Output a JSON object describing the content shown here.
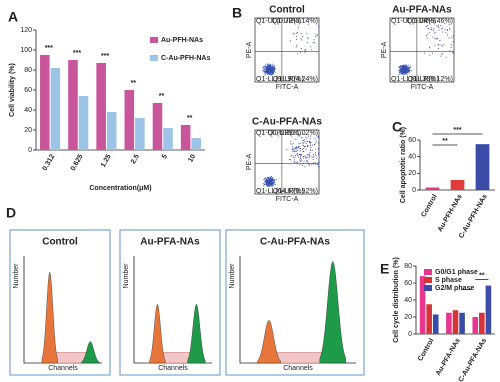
{
  "chart_data": [
    {
      "type": "bar",
      "panel": "A",
      "y_label": "Cell viability (%)",
      "x_label": "Concentration(μM)",
      "categories": [
        "0.312",
        "0.625",
        "1.25",
        "2.5",
        "5",
        "10"
      ],
      "series": [
        {
          "name": "Au-PFH-NAs",
          "color": "#c9559b",
          "values": [
            95,
            90,
            87,
            60,
            47,
            25
          ]
        },
        {
          "name": "C-Au-PFH-NAs",
          "color": "#9dc3e6",
          "values": [
            82,
            54,
            38,
            32,
            22,
            12
          ]
        }
      ],
      "annotations": [
        "***",
        "***",
        "***",
        "**",
        "**",
        "**"
      ],
      "ylim": [
        0,
        120
      ],
      "yticks": [
        0,
        20,
        40,
        60,
        80,
        100,
        120
      ]
    },
    {
      "type": "bar",
      "panel": "C",
      "y_label": "Cell apoptotic ratio (%)",
      "categories": [
        "Control",
        "Au-PFH-NAs",
        "C-Au-PFH-NAs"
      ],
      "values": [
        3,
        12,
        55
      ],
      "colors": [
        "#e8368f",
        "#e23b3b",
        "#3a4ca8"
      ],
      "annotations": [
        "**",
        "***"
      ],
      "ylim": [
        0,
        60
      ],
      "yticks": [
        0,
        20,
        40,
        60
      ]
    },
    {
      "type": "bar",
      "panel": "E",
      "y_label": "Cell cycle distribution (%)",
      "categories": [
        "Control",
        "Au-PFA-NAs",
        "C-Au-PFA-NAs"
      ],
      "series": [
        {
          "name": "G0/G1 phase",
          "color": "#e8368f",
          "values": [
            68,
            25,
            20
          ]
        },
        {
          "name": "S phase",
          "color": "#d6333a",
          "values": [
            35,
            28,
            25
          ]
        },
        {
          "name": "G2/M phase",
          "color": "#3a4ca8",
          "values": [
            23,
            25,
            57
          ]
        }
      ],
      "annotations": [
        "**"
      ],
      "ylim": [
        0,
        80
      ],
      "yticks": [
        0,
        20,
        40,
        60,
        80
      ]
    }
  ],
  "flow_panel": {
    "letter": "B",
    "x_axis": "FITC-A",
    "y_axis": "PE-A",
    "plots": [
      {
        "title": "Control",
        "UL": "Q1-UL(0.72%)",
        "UR": "Q1-UR(3.14%)",
        "LL": "Q1-LL(91.90%)",
        "LR": "Q1-LR(4.24%)"
      },
      {
        "title": "Au-PFA-NAs",
        "UL": "Q1-UL(1.04%)",
        "UR": "Q1-UR(9.46%)",
        "LL": "Q1-LL(81.38%)",
        "LR": "Q1-LR(8.12%)"
      },
      {
        "title": "C-Au-PFA-NAs",
        "UL": "Q1-UL(5.39%)",
        "UR": "Q1-UR(21.02%)",
        "LL": "Q1-LL(64.67%)",
        "LR": "Q1-LR(8.92%)"
      }
    ]
  },
  "cycle_panel": {
    "letter": "D",
    "x_axis": "Channels",
    "y_axis": "Number",
    "plots": [
      {
        "title": "Control"
      },
      {
        "title": "Au-PFA-NAs"
      },
      {
        "title": "C-Au-PFA-NAs"
      }
    ]
  }
}
